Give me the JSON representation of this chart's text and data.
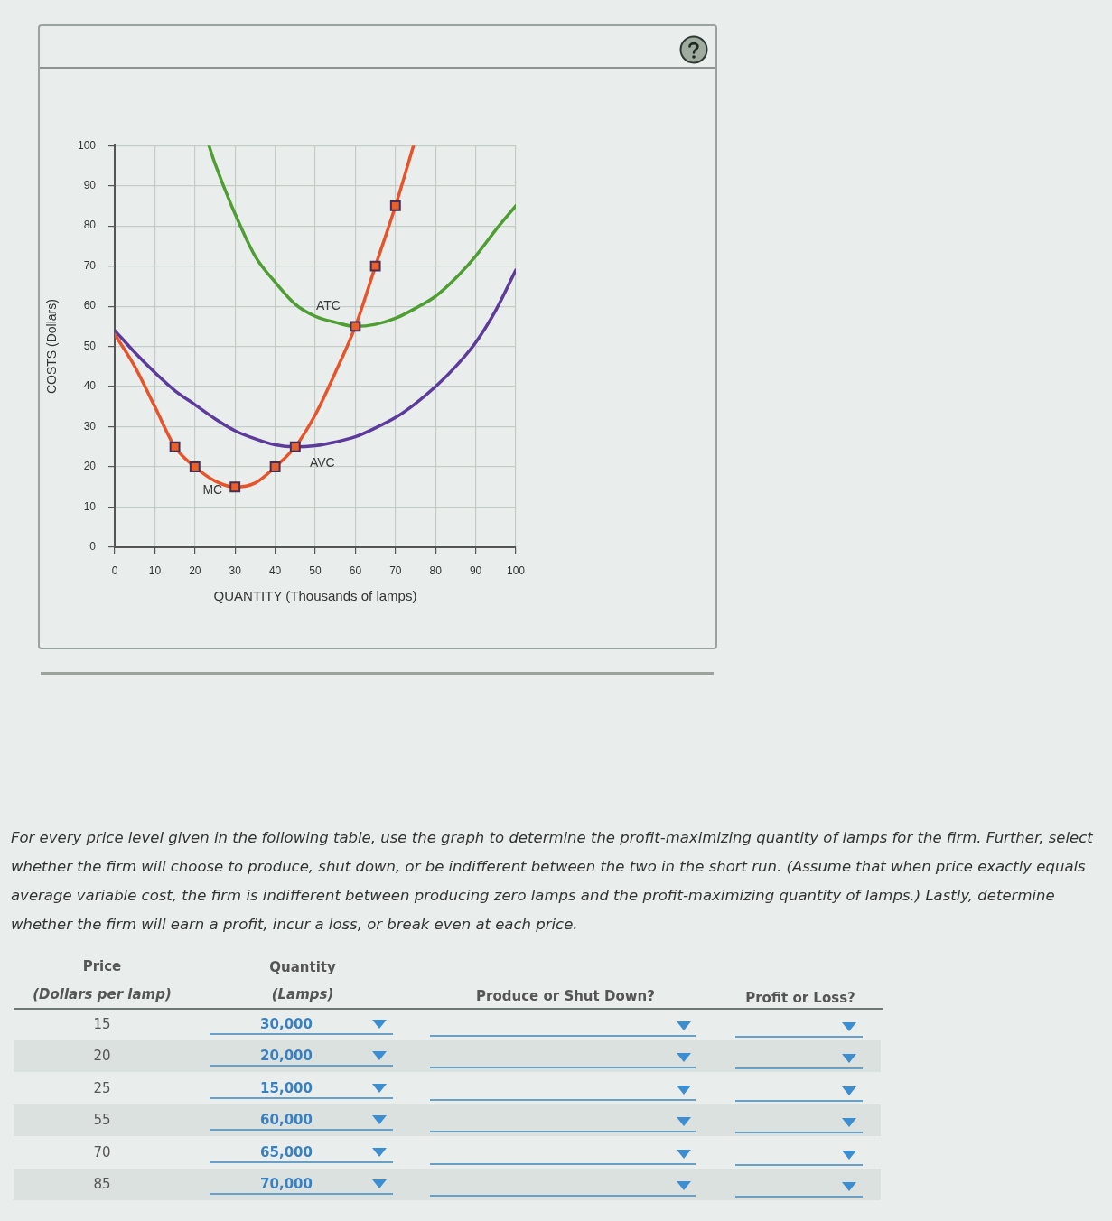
{
  "chart_data": {
    "type": "line",
    "xlabel": "QUANTITY (Thousands of lamps)",
    "ylabel": "COSTS (Dollars)",
    "xlim": [
      0,
      100
    ],
    "ylim": [
      0,
      100
    ],
    "xticks": [
      0,
      10,
      20,
      30,
      40,
      50,
      60,
      70,
      80,
      90,
      100
    ],
    "yticks": [
      0,
      10,
      20,
      30,
      40,
      50,
      60,
      70,
      80,
      90,
      100
    ],
    "grid": true,
    "marker": "none",
    "series": [
      {
        "name": "MC",
        "color": "#e8542a",
        "x": [
          0,
          5,
          10,
          15,
          20,
          25,
          30,
          35,
          40,
          45,
          50,
          55,
          60,
          65,
          70,
          74.5
        ],
        "values": [
          53,
          45,
          35,
          25,
          20,
          16.5,
          15,
          16,
          20,
          25,
          33,
          43.5,
          55,
          70,
          85,
          100
        ]
      },
      {
        "name": "ATC",
        "color": "#4f9e34",
        "x": [
          23.5,
          25,
          30,
          35,
          40,
          45,
          50,
          55,
          60,
          65,
          70,
          75,
          80,
          85,
          90,
          95,
          100
        ],
        "values": [
          100,
          95.5,
          83,
          72.5,
          66,
          60.5,
          57.5,
          56,
          55,
          55.5,
          57,
          59.5,
          62.5,
          67,
          72.5,
          79,
          85
        ]
      },
      {
        "name": "AVC",
        "color": "#5c3b9c",
        "x": [
          0,
          5,
          10,
          15,
          20,
          25,
          30,
          35,
          40,
          45,
          50,
          55,
          60,
          65,
          70,
          75,
          80,
          85,
          90,
          95,
          100
        ],
        "values": [
          54,
          48.5,
          43.5,
          39,
          35.5,
          32,
          29,
          27,
          25.5,
          25,
          25.3,
          26.2,
          27.5,
          29.7,
          32.3,
          35.8,
          40,
          45,
          51,
          59,
          69
        ]
      },
      {
        "type": "scatter",
        "color": "#e8612c",
        "marker": "square",
        "x": [
          15,
          20,
          30,
          40,
          45,
          60,
          65,
          70
        ],
        "values": [
          25,
          20,
          15,
          20,
          25,
          55,
          70,
          85
        ]
      }
    ],
    "annotations": [
      "For every price level given in the following table, use the graph to determine the profit-maximizing quantity of lamps for the firm. Further, select whether the firm will choose to produce, shut down, or be indifferent between the two in the short run. (Assume that when price exactly equals average variable cost, the firm is indifferent between producing zero lamps and the profit-maximizing quantity of lamps.) Lastly, determine whether the firm will earn a profit, incur a loss, or break even at each price.",
      "Price",
      "(Dollars per lamp)",
      "Quantity",
      "(Lamps)",
      "Produce or Shut Down?",
      "Profit or Loss?",
      "15",
      "30,000",
      "20",
      "20,000",
      "25",
      "15,000",
      "55",
      "60,000",
      "70",
      "65,000",
      "85",
      "70,000"
    ]
  }
}
